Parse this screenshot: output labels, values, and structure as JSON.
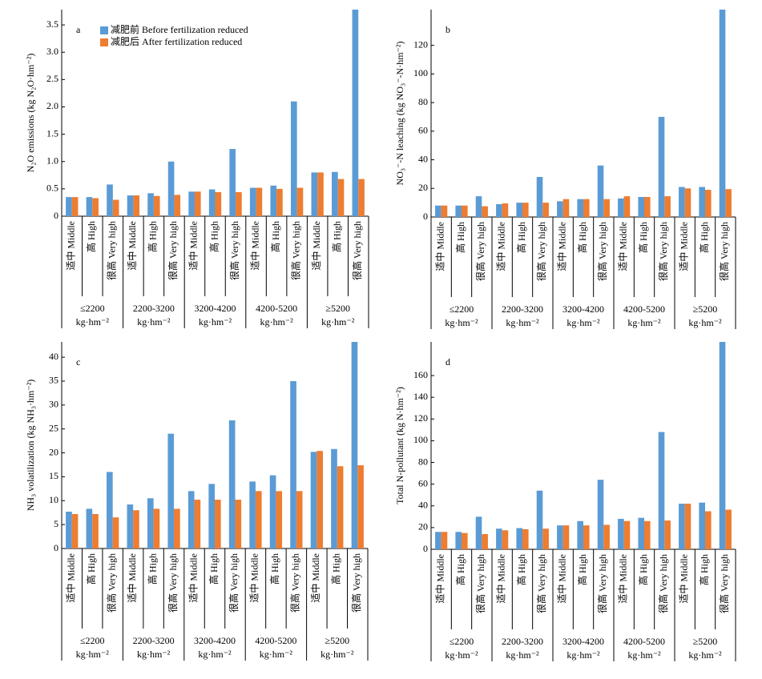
{
  "chart_data": [
    {
      "type": "bar",
      "panel_label": "a",
      "ylabel": "N₂O emissions (kg N₂O·hm⁻²)",
      "categories": [
        "适中 Middle",
        "高 High",
        "很高 Very high",
        "适中 Middle",
        "高 High",
        "很高 Very high",
        "适中 Middle",
        "高 High",
        "很高 Very high",
        "适中 Middle",
        "高 High",
        "很高 Very high",
        "适中 Middle",
        "高 High",
        "很高 Very high"
      ],
      "groups": [
        {
          "label": "≤2200",
          "unit": "kg·hm⁻²"
        },
        {
          "label": "2200-3200",
          "unit": "kg·hm⁻²"
        },
        {
          "label": "3200-4200",
          "unit": "kg·hm⁻²"
        },
        {
          "label": "4200-5200",
          "unit": "kg·hm⁻²"
        },
        {
          "label": "≥5200",
          "unit": "kg·hm⁻²"
        }
      ],
      "series": [
        {
          "name": "减肥前 Before fertilization reduced",
          "color": "#5b9bd5",
          "values": [
            0.35,
            0.35,
            0.58,
            0.38,
            0.42,
            1.0,
            0.45,
            0.49,
            1.23,
            0.52,
            0.56,
            2.1,
            0.8,
            0.81,
            3.78
          ]
        },
        {
          "name": "减肥后 After fertilization reduced",
          "color": "#ed7d31",
          "values": [
            0.35,
            0.33,
            0.3,
            0.38,
            0.37,
            0.39,
            0.45,
            0.44,
            0.44,
            0.52,
            0.5,
            0.52,
            0.8,
            0.68,
            0.68
          ]
        }
      ],
      "ylim": [
        0,
        3.78
      ],
      "yticks": [
        0,
        0.5,
        {
          "value": 1,
          "label": "1.0"
        },
        1.5,
        {
          "value": 2,
          "label": "2.0"
        },
        2.5,
        {
          "value": 3,
          "label": "3.0"
        },
        3.5
      ]
    },
    {
      "type": "bar",
      "panel_label": "b",
      "ylabel": "NO₃⁻-N leaching (kg NO₃⁻-N·hm⁻²)",
      "categories": [
        "适中 Middle",
        "高 High",
        "很高 Very high",
        "适中 Middle",
        "高 High",
        "很高 Very high",
        "适中 Middle",
        "高 High",
        "很高 Very high",
        "适中 Middle",
        "高 High",
        "很高 Very high",
        "适中 Middle",
        "高 High",
        "很高 Very high"
      ],
      "groups": [
        {
          "label": "≤2200",
          "unit": "kg·hm⁻²"
        },
        {
          "label": "2200-3200",
          "unit": "kg·hm⁻²"
        },
        {
          "label": "3200-4200",
          "unit": "kg·hm⁻²"
        },
        {
          "label": "4200-5200",
          "unit": "kg·hm⁻²"
        },
        {
          "label": "≥5200",
          "unit": "kg·hm⁻²"
        }
      ],
      "series": [
        {
          "color": "#5b9bd5",
          "values": [
            8,
            8,
            14.5,
            9,
            10,
            28,
            11,
            12.5,
            36,
            13,
            14,
            70,
            21,
            21,
            145
          ]
        },
        {
          "color": "#ed7d31",
          "values": [
            8,
            8,
            7.5,
            9.5,
            10,
            10,
            12.5,
            12.5,
            12.5,
            14.5,
            14,
            14.5,
            20,
            19,
            19.5
          ]
        }
      ],
      "ylim": [
        0,
        145
      ],
      "yticks": [
        0,
        20,
        40,
        60,
        80,
        100,
        120
      ]
    },
    {
      "type": "bar",
      "panel_label": "c",
      "ylabel": "NH₃ volatilization (kg NH₃·hm⁻²)",
      "categories": [
        "适中 Middle",
        "高 High",
        "很高 Very high",
        "适中 Middle",
        "高 High",
        "很高 Very high",
        "适中 Middle",
        "高 High",
        "很高 Very high",
        "适中 Middle",
        "高 High",
        "很高 Very high",
        "适中 Middle",
        "高 High",
        "很高 Very high"
      ],
      "groups": [
        {
          "label": "≤2200",
          "unit": "kg·hm⁻²"
        },
        {
          "label": "2200-3200",
          "unit": "kg·hm⁻²"
        },
        {
          "label": "3200-4200",
          "unit": "kg·hm⁻²"
        },
        {
          "label": "4200-5200",
          "unit": "kg·hm⁻²"
        },
        {
          "label": "≥5200",
          "unit": "kg·hm⁻²"
        }
      ],
      "series": [
        {
          "color": "#5b9bd5",
          "values": [
            7.7,
            8.3,
            16,
            9.2,
            10.5,
            24,
            12,
            13.5,
            26.8,
            14,
            15.3,
            35,
            20.2,
            20.8,
            43.2
          ]
        },
        {
          "color": "#ed7d31",
          "values": [
            7.2,
            7.2,
            6.5,
            8,
            8.3,
            8.3,
            10.2,
            10.2,
            10.2,
            12,
            12,
            12,
            20.4,
            17.2,
            17.4
          ]
        }
      ],
      "ylim": [
        0,
        43.2
      ],
      "yticks": [
        0,
        5,
        10,
        15,
        20,
        25,
        30,
        35,
        40
      ]
    },
    {
      "type": "bar",
      "panel_label": "d",
      "ylabel": "Total N-pollutant (kg N·hm⁻²)",
      "categories": [
        "适中 Middle",
        "高 High",
        "很高 Very high",
        "适中 Middle",
        "高 High",
        "很高 Very high",
        "适中 Middle",
        "高 High",
        "很高 Very high",
        "适中 Middle",
        "高 High",
        "很高 Very high",
        "适中 Middle",
        "高 High",
        "很高 Very high"
      ],
      "groups": [
        {
          "label": "≤2200",
          "unit": "kg·hm⁻²"
        },
        {
          "label": "2200-3200",
          "unit": "kg·hm⁻²"
        },
        {
          "label": "3200-4200",
          "unit": "kg·hm⁻²"
        },
        {
          "label": "4200-5200",
          "unit": "kg·hm⁻²"
        },
        {
          "label": "≥5200",
          "unit": "kg·hm⁻²"
        }
      ],
      "series": [
        {
          "color": "#5b9bd5",
          "values": [
            16,
            16,
            30,
            19,
            19.5,
            54,
            22,
            26,
            64,
            28,
            29,
            108,
            42,
            43,
            191
          ]
        },
        {
          "color": "#ed7d31",
          "values": [
            16,
            15,
            14,
            17.5,
            18.5,
            19,
            22,
            22,
            22.5,
            26,
            26,
            26.5,
            42,
            35,
            36.5
          ]
        }
      ],
      "ylim": [
        0,
        191
      ],
      "yticks": [
        0,
        20,
        40,
        60,
        80,
        100,
        120,
        140,
        160
      ]
    }
  ]
}
